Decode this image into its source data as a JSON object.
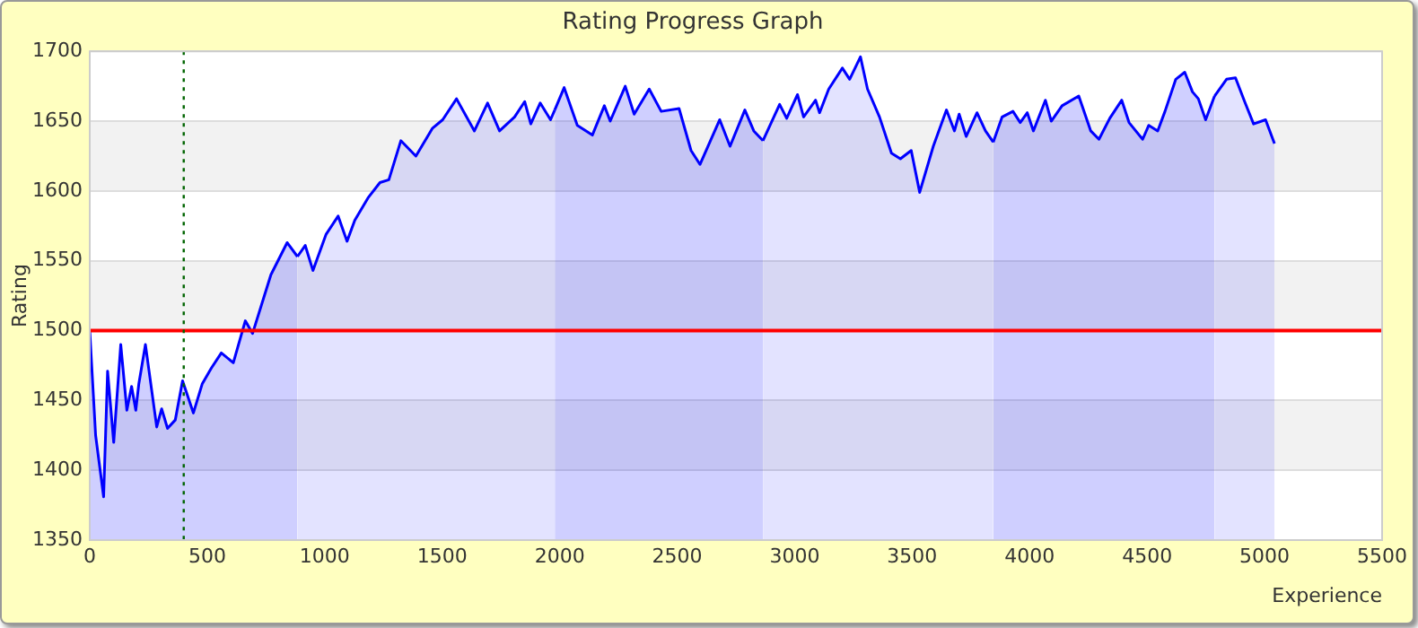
{
  "chart_data": {
    "type": "area",
    "title": "Rating Progress Graph",
    "xlabel": "Experience",
    "ylabel": "Rating",
    "xlim": [
      0,
      5500
    ],
    "xticks": [
      0,
      500,
      1000,
      1500,
      2000,
      2500,
      3000,
      3500,
      4000,
      4500,
      5000,
      5500
    ],
    "ylim": [
      1350,
      1700
    ],
    "yticks": [
      1350,
      1400,
      1450,
      1500,
      1550,
      1600,
      1650,
      1700
    ],
    "grid": "y",
    "legend": false,
    "line_style": "solid",
    "marker": "none",
    "series": [
      {
        "color": "#0000ff",
        "x": [
          0,
          25,
          59,
          76,
          102,
          132,
          158,
          178,
          196,
          209,
          237,
          285,
          306,
          331,
          364,
          395,
          441,
          479,
          517,
          560,
          611,
          662,
          693,
          771,
          840,
          884
        ],
        "values": [
          1500,
          1425,
          1381,
          1471,
          1420,
          1490,
          1443,
          1460,
          1443,
          1462,
          1490,
          1431,
          1444,
          1430,
          1436,
          1464,
          1441,
          1462,
          1473,
          1484,
          1477,
          1507,
          1498,
          1540,
          1563,
          1553
        ]
      },
      {
        "color": "#0000ff",
        "x": [
          884,
          917,
          950,
          1006,
          1057,
          1095,
          1128,
          1184,
          1235,
          1273,
          1324,
          1388,
          1459,
          1502,
          1561,
          1637,
          1693,
          1744,
          1808,
          1851,
          1877,
          1917,
          1961,
          1979
        ],
        "values": [
          1553,
          1561,
          1543,
          1569,
          1582,
          1564,
          1579,
          1595,
          1606,
          1608,
          1636,
          1625,
          1645,
          1651,
          1666,
          1643,
          1663,
          1643,
          1653,
          1664,
          1648,
          1663,
          1651,
          1658
        ]
      },
      {
        "color": "#0000ff",
        "x": [
          1979,
          2019,
          2075,
          2139,
          2190,
          2215,
          2279,
          2317,
          2381,
          2432,
          2508,
          2559,
          2597,
          2681,
          2725,
          2788,
          2826,
          2865
        ],
        "values": [
          1658,
          1674,
          1647,
          1640,
          1661,
          1650,
          1675,
          1655,
          1673,
          1657,
          1659,
          1629,
          1619,
          1651,
          1632,
          1658,
          1643,
          1636
        ]
      },
      {
        "color": "#0000ff",
        "x": [
          2865,
          2936,
          2966,
          3012,
          3038,
          3089,
          3106,
          3145,
          3203,
          3234,
          3280,
          3310,
          3361,
          3412,
          3450,
          3496,
          3532,
          3590,
          3646,
          3680,
          3700,
          3730,
          3776,
          3812,
          3845
        ],
        "values": [
          1636,
          1662,
          1652,
          1669,
          1653,
          1665,
          1656,
          1673,
          1688,
          1680,
          1696,
          1673,
          1653,
          1627,
          1623,
          1629,
          1599,
          1632,
          1658,
          1643,
          1655,
          1639,
          1656,
          1643,
          1635
        ]
      },
      {
        "color": "#0000ff",
        "x": [
          3845,
          3883,
          3929,
          3960,
          3990,
          4016,
          4067,
          4092,
          4138,
          4209,
          4260,
          4295,
          4341,
          4392,
          4423,
          4481,
          4507,
          4545,
          4576,
          4622,
          4660,
          4693,
          4718,
          4749,
          4787
        ],
        "values": [
          1635,
          1653,
          1657,
          1649,
          1656,
          1643,
          1665,
          1650,
          1661,
          1668,
          1643,
          1637,
          1652,
          1665,
          1649,
          1637,
          1647,
          1643,
          1657,
          1680,
          1685,
          1671,
          1666,
          1651,
          1668
        ]
      },
      {
        "color": "#0000ff",
        "x": [
          4787,
          4838,
          4876,
          4915,
          4953,
          5004,
          5042
        ],
        "values": [
          1668,
          1680,
          1681,
          1664,
          1648,
          1651,
          1634
        ]
      }
    ],
    "ref_lines": [
      {
        "axis": "y",
        "value": 1500,
        "color": "#ff0000",
        "line_style": "solid"
      },
      {
        "axis": "x",
        "value": 400,
        "color": "#006400",
        "line_style": "dotted"
      }
    ]
  }
}
